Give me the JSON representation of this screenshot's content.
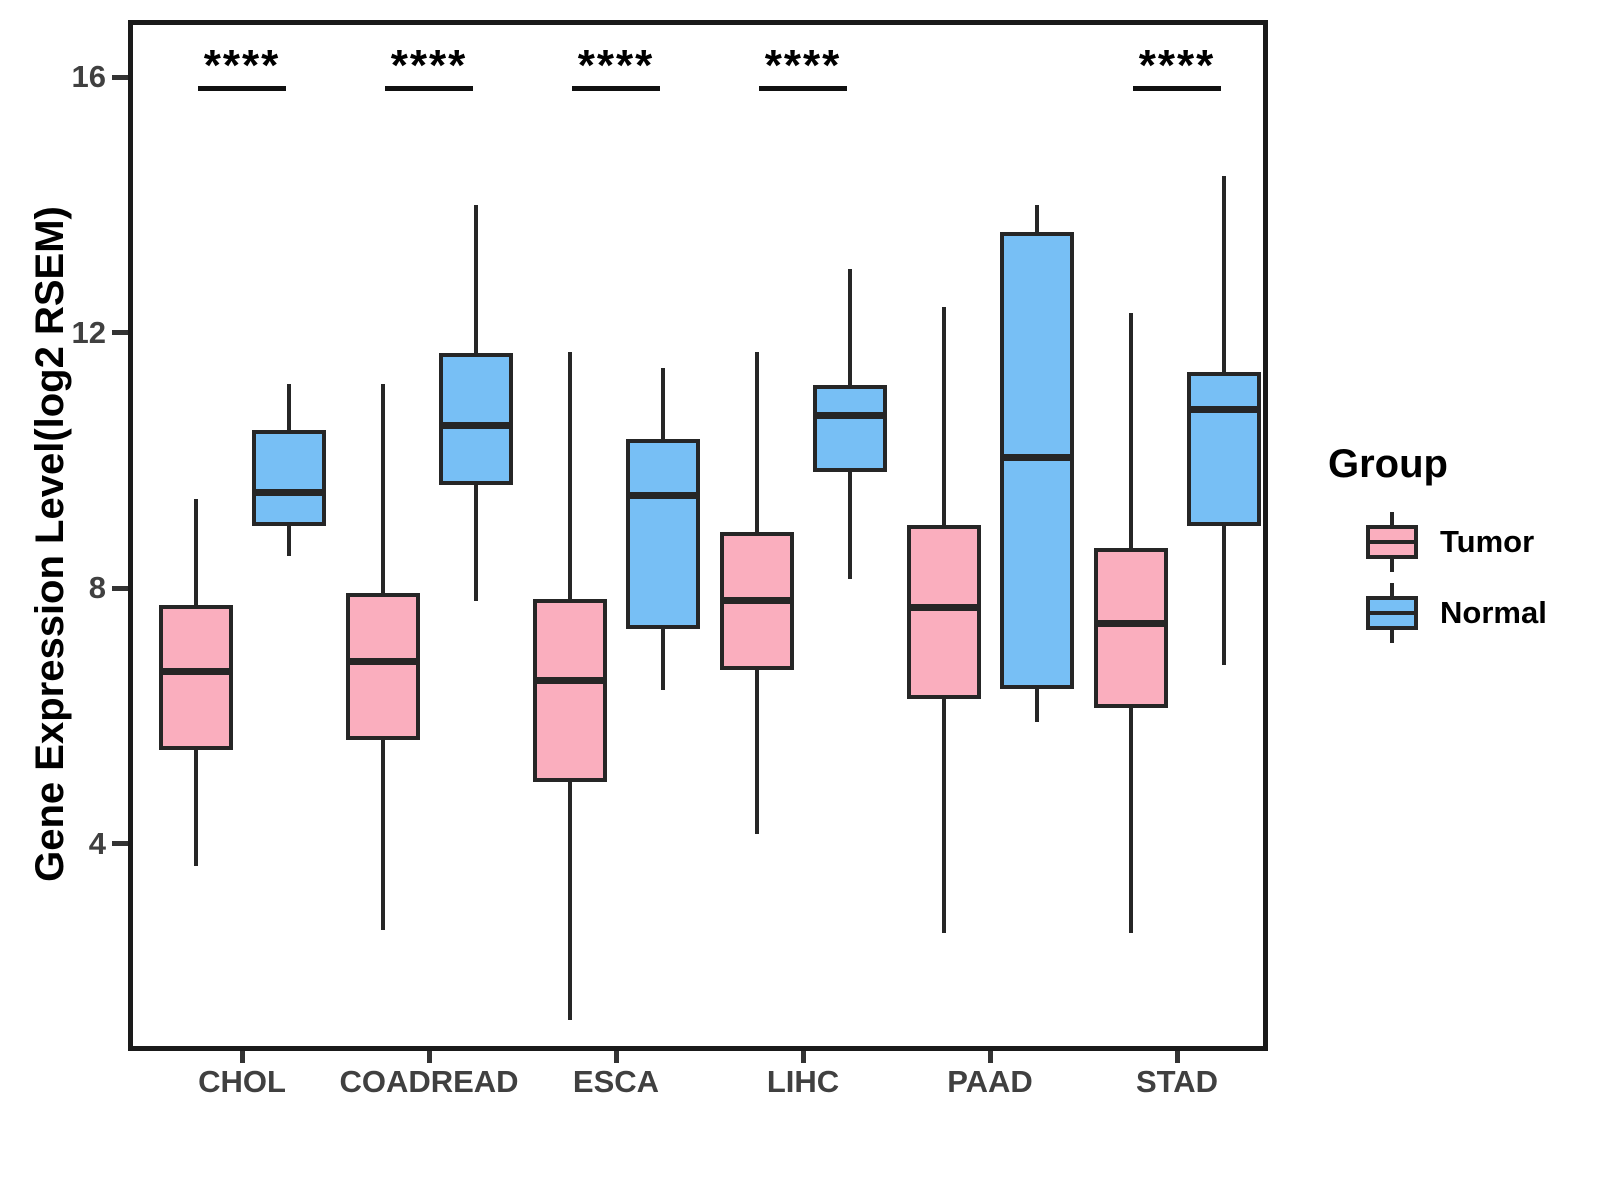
{
  "chart_data": {
    "type": "boxplot",
    "title": "",
    "xlabel": "",
    "ylabel": "Gene Expression Level(log2 RSEM)",
    "yticks": [
      16,
      12,
      8,
      4
    ],
    "ylim": [
      0.75,
      16.9
    ],
    "grid": "off",
    "categories": [
      "CHOL",
      "COADREAD",
      "ESCA",
      "LIHC",
      "PAAD",
      "STAD"
    ],
    "groups": [
      {
        "name": "Tumor",
        "color": "#FAAEBE"
      },
      {
        "name": "Normal",
        "color": "#77BFF5"
      }
    ],
    "box_border_color": "#262626",
    "legend": {
      "title": "Group",
      "position": "right"
    },
    "significance": [
      {
        "category": "CHOL",
        "label": "****"
      },
      {
        "category": "COADREAD",
        "label": "****"
      },
      {
        "category": "ESCA",
        "label": "****"
      },
      {
        "category": "LIHC",
        "label": "****"
      },
      {
        "category": "STAD",
        "label": "****"
      }
    ],
    "series": [
      {
        "name": "Tumor",
        "boxes": [
          {
            "category": "CHOL",
            "whisker_low": 3.65,
            "q1": 5.5,
            "median": 6.7,
            "q3": 7.7,
            "whisker_high": 9.4
          },
          {
            "category": "COADREAD",
            "whisker_low": 2.65,
            "q1": 5.65,
            "median": 6.85,
            "q3": 7.9,
            "whisker_high": 11.2
          },
          {
            "category": "ESCA",
            "whisker_low": 1.25,
            "q1": 5.0,
            "median": 6.55,
            "q3": 7.8,
            "whisker_high": 11.7
          },
          {
            "category": "LIHC",
            "whisker_low": 4.15,
            "q1": 6.75,
            "median": 7.8,
            "q3": 8.85,
            "whisker_high": 11.7
          },
          {
            "category": "PAAD",
            "whisker_low": 2.6,
            "q1": 6.3,
            "median": 7.7,
            "q3": 8.95,
            "whisker_high": 12.4
          },
          {
            "category": "STAD",
            "whisker_low": 2.6,
            "q1": 6.15,
            "median": 7.45,
            "q3": 8.6,
            "whisker_high": 12.3
          }
        ]
      },
      {
        "name": "Normal",
        "boxes": [
          {
            "category": "CHOL",
            "whisker_low": 8.5,
            "q1": 9.0,
            "median": 9.5,
            "q3": 10.45,
            "whisker_high": 11.2
          },
          {
            "category": "COADREAD",
            "whisker_low": 7.8,
            "q1": 9.65,
            "median": 10.55,
            "q3": 11.65,
            "whisker_high": 14.0
          },
          {
            "category": "ESCA",
            "whisker_low": 6.4,
            "q1": 7.4,
            "median": 9.45,
            "q3": 10.3,
            "whisker_high": 11.45
          },
          {
            "category": "LIHC",
            "whisker_low": 8.15,
            "q1": 9.85,
            "median": 10.7,
            "q3": 11.15,
            "whisker_high": 13.0
          },
          {
            "category": "PAAD",
            "whisker_low": 5.9,
            "q1": 6.45,
            "median": 10.05,
            "q3": 13.55,
            "whisker_high": 14.0
          },
          {
            "category": "STAD",
            "whisker_low": 6.8,
            "q1": 9.0,
            "median": 10.8,
            "q3": 11.35,
            "whisker_high": 14.45
          }
        ]
      }
    ]
  }
}
